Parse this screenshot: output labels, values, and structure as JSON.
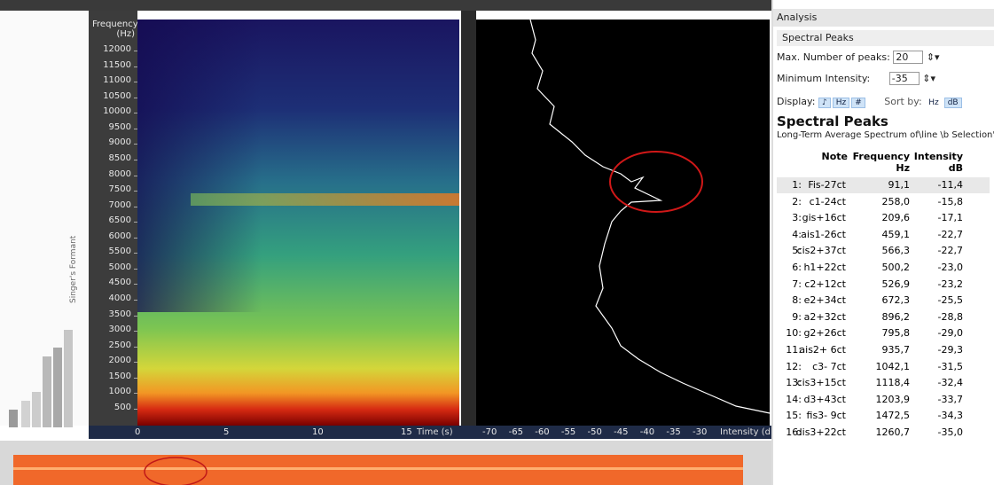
{
  "spectrogram": {
    "y_label": [
      "Frequency",
      "(Hz)"
    ],
    "yticks": [
      500,
      1000,
      1500,
      2000,
      2500,
      3000,
      3500,
      4000,
      4500,
      5000,
      5500,
      6000,
      6500,
      7000,
      7500,
      8000,
      8500,
      9000,
      9500,
      10000,
      10500,
      11000,
      11500,
      12000
    ],
    "xticks": [
      0,
      5,
      10,
      15
    ],
    "x_label": "Time (s)"
  },
  "spectrum": {
    "xticks": [
      -70,
      -65,
      -60,
      -55,
      -50,
      -45,
      -40,
      -35,
      -30
    ],
    "x_label": "Intensity (dB)"
  },
  "left_labels": [
    "Singer's Formant"
  ],
  "analysis": {
    "title": "Analysis",
    "section": "Spectral Peaks",
    "max_peaks_label": "Max. Number of peaks:",
    "max_peaks": 20,
    "min_intensity_label": "Minimum Intensity:",
    "min_intensity": -35,
    "display_label": "Display:",
    "display_buttons": [
      "♪",
      "Hz",
      "#"
    ],
    "sort_label": "Sort by:",
    "sort_buttons": [
      "Hz",
      "dB"
    ]
  },
  "table": {
    "title": "Spectral Peaks",
    "subtitle": "Long-Term Average Spectrum of\\line \\b Selection'",
    "columns": [
      "Note",
      "Frequency",
      "Intensity"
    ],
    "units": [
      "Hz",
      "dB"
    ],
    "rows": [
      [
        "1:",
        "Fis-27ct",
        "91,1",
        "-11,4"
      ],
      [
        "2:",
        "c1-24ct",
        "258,0",
        "-15,8"
      ],
      [
        "3:",
        "gis+16ct",
        "209,6",
        "-17,1"
      ],
      [
        "4:",
        "ais1-26ct",
        "459,1",
        "-22,7"
      ],
      [
        "5:",
        "cis2+37ct",
        "566,3",
        "-22,7"
      ],
      [
        "6:",
        "h1+22ct",
        "500,2",
        "-23,0"
      ],
      [
        "7:",
        "c2+12ct",
        "526,9",
        "-23,2"
      ],
      [
        "8:",
        "e2+34ct",
        "672,3",
        "-25,5"
      ],
      [
        "9:",
        "a2+32ct",
        "896,2",
        "-28,8"
      ],
      [
        "10:",
        "g2+26ct",
        "795,8",
        "-29,0"
      ],
      [
        "11:",
        "ais2+ 6ct",
        "935,7",
        "-29,3"
      ],
      [
        "12:",
        "c3- 7ct",
        "1042,1",
        "-31,5"
      ],
      [
        "13:",
        "cis3+15ct",
        "1118,4",
        "-32,4"
      ],
      [
        "14:",
        "d3+43ct",
        "1203,9",
        "-33,7"
      ],
      [
        "15:",
        "fis3- 9ct",
        "1472,5",
        "-34,3"
      ],
      [
        "16:",
        "dis3+22ct",
        "1260,7",
        "-35,0"
      ]
    ]
  }
}
